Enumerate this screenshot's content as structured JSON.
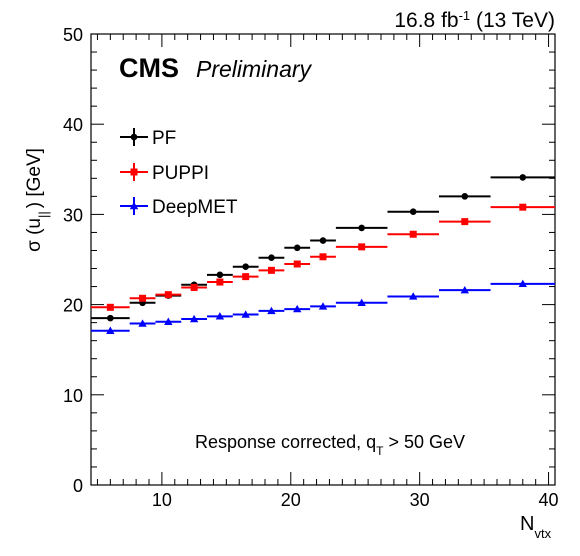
{
  "header": {
    "lumi": "16.8",
    "lumi_unit": "fb",
    "lumi_exp": "-1",
    "energy": "(13 TeV)",
    "cms": "CMS",
    "preliminary": "Preliminary"
  },
  "chart_data": {
    "type": "scatter",
    "xlabel_main": "N",
    "xlabel_sub": "vtx",
    "ylabel_main": "σ (u",
    "ylabel_sub": "||",
    "ylabel_tail": ") [GeV]",
    "xlim": [
      4.5,
      40.5
    ],
    "ylim": [
      0,
      50
    ],
    "xticks": [
      10,
      20,
      30,
      40
    ],
    "yticks": [
      0,
      10,
      20,
      30,
      40,
      50
    ],
    "annotation_main": "Response corrected, q",
    "annotation_sub": "T",
    "annotation_tail": " > 50 GeV",
    "legend_placement": "top-left",
    "series": [
      {
        "name": "PF",
        "color": "#000000",
        "marker": "circle",
        "bins": [
          [
            4.5,
            7.5
          ],
          [
            7.5,
            9.5
          ],
          [
            9.5,
            11.5
          ],
          [
            11.5,
            13.5
          ],
          [
            13.5,
            15.5
          ],
          [
            15.5,
            17.5
          ],
          [
            17.5,
            19.5
          ],
          [
            19.5,
            21.5
          ],
          [
            21.5,
            23.5
          ],
          [
            23.5,
            27.5
          ],
          [
            27.5,
            31.5
          ],
          [
            31.5,
            35.5
          ],
          [
            35.5,
            40.5
          ]
        ],
        "x": [
          6,
          8.5,
          10.5,
          12.5,
          14.5,
          16.5,
          18.5,
          20.5,
          22.5,
          25.5,
          29.5,
          33.5,
          38
        ],
        "y": [
          18.5,
          20.2,
          21.0,
          22.2,
          23.3,
          24.2,
          25.2,
          26.3,
          27.1,
          28.5,
          30.3,
          32.0,
          34.1
        ]
      },
      {
        "name": "PUPPI",
        "color": "#ff0000",
        "marker": "square",
        "bins": [
          [
            4.5,
            7.5
          ],
          [
            7.5,
            9.5
          ],
          [
            9.5,
            11.5
          ],
          [
            11.5,
            13.5
          ],
          [
            13.5,
            15.5
          ],
          [
            15.5,
            17.5
          ],
          [
            17.5,
            19.5
          ],
          [
            19.5,
            21.5
          ],
          [
            21.5,
            23.5
          ],
          [
            23.5,
            27.5
          ],
          [
            27.5,
            31.5
          ],
          [
            31.5,
            35.5
          ],
          [
            35.5,
            40.5
          ]
        ],
        "x": [
          6,
          8.5,
          10.5,
          12.5,
          14.5,
          16.5,
          18.5,
          20.5,
          22.5,
          25.5,
          29.5,
          33.5,
          38
        ],
        "y": [
          19.7,
          20.7,
          21.1,
          21.9,
          22.5,
          23.1,
          23.8,
          24.5,
          25.3,
          26.4,
          27.8,
          29.2,
          30.8
        ]
      },
      {
        "name": "DeepMET",
        "color": "#0000ff",
        "marker": "triangle",
        "bins": [
          [
            4.5,
            7.5
          ],
          [
            7.5,
            9.5
          ],
          [
            9.5,
            11.5
          ],
          [
            11.5,
            13.5
          ],
          [
            13.5,
            15.5
          ],
          [
            15.5,
            17.5
          ],
          [
            17.5,
            19.5
          ],
          [
            19.5,
            21.5
          ],
          [
            21.5,
            23.5
          ],
          [
            23.5,
            27.5
          ],
          [
            27.5,
            31.5
          ],
          [
            31.5,
            35.5
          ],
          [
            35.5,
            40.5
          ]
        ],
        "x": [
          6,
          8.5,
          10.5,
          12.5,
          14.5,
          16.5,
          18.5,
          20.5,
          22.5,
          25.5,
          29.5,
          33.5,
          38
        ],
        "y": [
          17.1,
          17.9,
          18.1,
          18.4,
          18.7,
          18.9,
          19.3,
          19.5,
          19.8,
          20.2,
          20.9,
          21.6,
          22.3
        ]
      }
    ]
  }
}
